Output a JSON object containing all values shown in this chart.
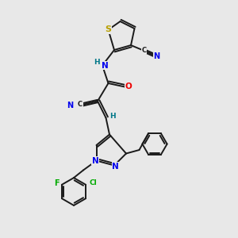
{
  "bg_color": "#e8e8e8",
  "bond_color": "#1a1a1a",
  "atom_colors": {
    "S": "#b8a000",
    "N": "#0000ee",
    "O": "#ee0000",
    "F": "#00aa00",
    "Cl": "#00aa00",
    "H": "#007788",
    "C": "#1a1a1a"
  },
  "lw": 1.4,
  "fs": 7.0
}
